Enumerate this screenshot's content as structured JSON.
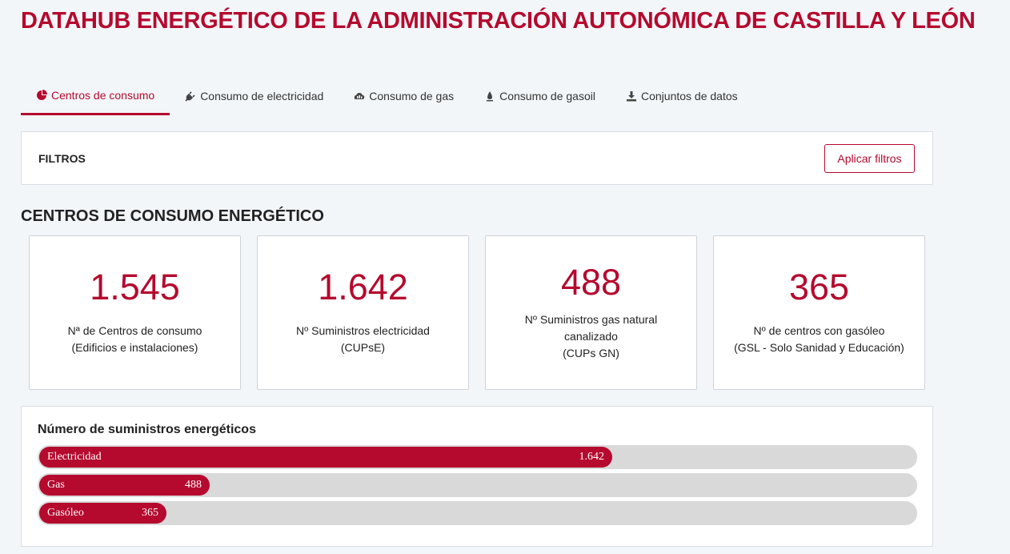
{
  "header": {
    "title": "DATAHUB ENERGÉTICO DE LA ADMINISTRACIÓN AUTONÓMICA DE CASTILLA Y LEÓN"
  },
  "tabs": [
    {
      "label": "Centros de consumo",
      "icon": "pie-chart-icon",
      "active": true
    },
    {
      "label": "Consumo de electricidad",
      "icon": "plug-icon",
      "active": false
    },
    {
      "label": "Consumo de gas",
      "icon": "gas-cloud-icon",
      "active": false
    },
    {
      "label": "Consumo de gasoil",
      "icon": "fuel-drop-icon",
      "active": false
    },
    {
      "label": "Conjuntos de datos",
      "icon": "download-icon",
      "active": false
    }
  ],
  "filters": {
    "label": "FILTROS",
    "apply_label": "Aplicar filtros"
  },
  "section": {
    "title": "CENTROS DE CONSUMO ENERGÉTICO"
  },
  "cards": [
    {
      "value": "1.545",
      "label": "Nª de Centros de consumo\n(Edificios e instalaciones)"
    },
    {
      "value": "1.642",
      "label": "Nº Suministros electricidad\n(CUPsE)"
    },
    {
      "value": "488",
      "label": "Nº Suministros gas natural\ncanalizado\n(CUPs GN)"
    },
    {
      "value": "365",
      "label": "Nº de centros con gasóleo\n(GSL - Solo Sanidad y Educación)"
    }
  ],
  "supplies": {
    "title": "Número de suministros energéticos",
    "bars": [
      {
        "label": "Electricidad",
        "value": 1642,
        "display": "1.642"
      },
      {
        "label": "Gas",
        "value": 488,
        "display": "488"
      },
      {
        "label": "Gasóleo",
        "value": 365,
        "display": "365"
      }
    ]
  },
  "colors": {
    "accent": "#b5092e",
    "track": "#d9d9d9",
    "background": "#f3f6f9"
  }
}
